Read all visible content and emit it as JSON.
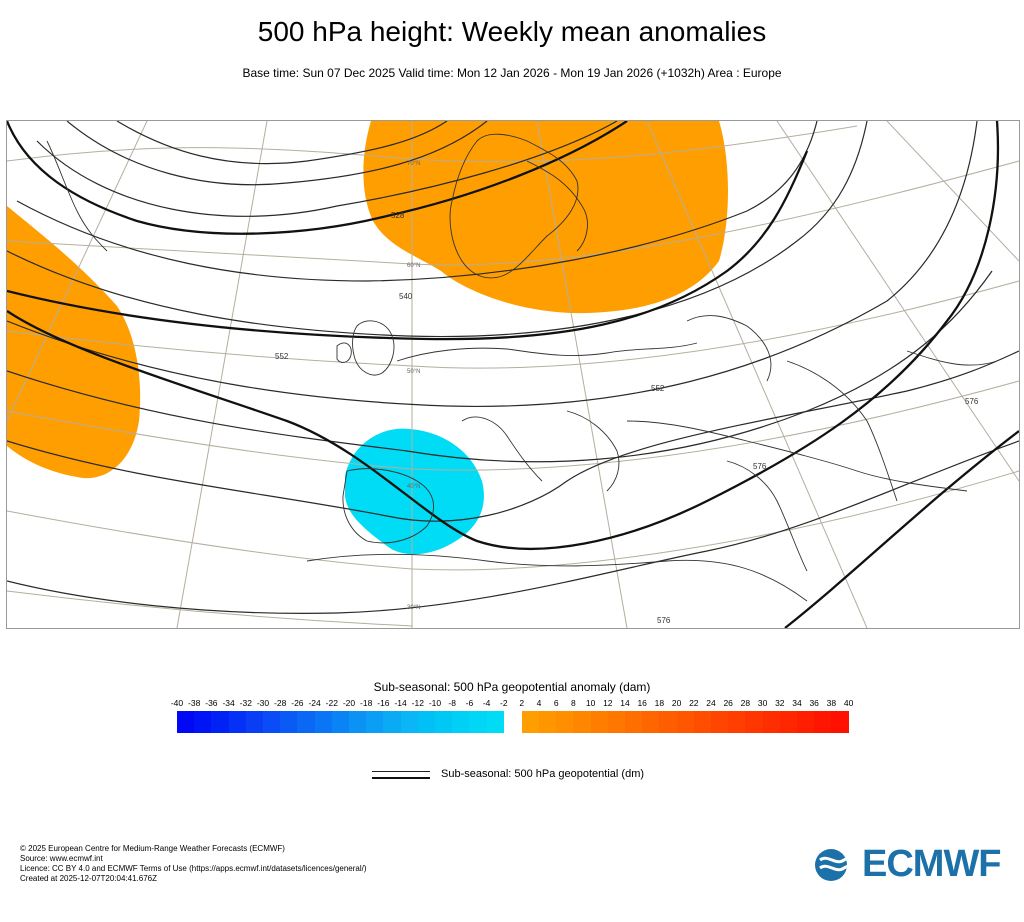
{
  "header": {
    "title": "500 hPa height: Weekly mean anomalies",
    "subtitle": "Base time: Sun 07 Dec 2025 Valid time: Mon 12 Jan 2026 - Mon 19 Jan 2026 (+1032h) Area : Europe"
  },
  "map": {
    "contour_labels": [
      "528",
      "540",
      "552",
      "552",
      "576",
      "576",
      "576"
    ],
    "lat_labels": [
      "70°N",
      "60°N",
      "50°N",
      "40°N",
      "30°N"
    ],
    "colors": {
      "positive_anomaly": "#ff9e00",
      "negative_anomaly": "#00dcf5",
      "contour": "#222222",
      "graticule": "#b5ae9e"
    }
  },
  "legend": {
    "title": "Sub-seasonal: 500 hPa geopotential anomaly (dam)",
    "ticks": [
      "-40",
      "-38",
      "-36",
      "-34",
      "-32",
      "-30",
      "-28",
      "-26",
      "-24",
      "-22",
      "-20",
      "-18",
      "-16",
      "-14",
      "-12",
      "-10",
      "-8",
      "-6",
      "-4",
      "-2",
      "2",
      "4",
      "6",
      "8",
      "10",
      "12",
      "14",
      "16",
      "18",
      "20",
      "22",
      "24",
      "26",
      "28",
      "30",
      "32",
      "34",
      "36",
      "38",
      "40"
    ],
    "negative_colors": [
      "#0008f5",
      "#0015f5",
      "#0022f5",
      "#0530f5",
      "#0a3ef5",
      "#0a4cf5",
      "#0a5af5",
      "#0a68f5",
      "#0a76f5",
      "#0a84f5",
      "#0a92f5",
      "#0a9ef5",
      "#0aaaf5",
      "#0ab6f5",
      "#00c0f5",
      "#00c8f5",
      "#00d0f5",
      "#00d6f5",
      "#00dcf5"
    ],
    "positive_colors": [
      "#ff9e00",
      "#ff9600",
      "#ff8e00",
      "#ff8600",
      "#ff7e00",
      "#ff7600",
      "#ff6e00",
      "#ff6600",
      "#ff5e00",
      "#ff5600",
      "#ff4e00",
      "#ff4600",
      "#ff3e00",
      "#ff3600",
      "#ff2e00",
      "#ff2600",
      "#ff1e00",
      "#ff1600",
      "#ff1000"
    ],
    "line_label": "Sub-seasonal: 500 hPa geopotential (dm)"
  },
  "footer": {
    "lines": [
      "© 2025 European Centre for Medium-Range Weather Forecasts (ECMWF)",
      "Source: www.ecmwf.int",
      "Licence: CC BY 4.0 and ECMWF Terms of Use (https://apps.ecmwf.int/datasets/licences/general/)",
      "Created at 2025-12-07T20:04:41.676Z"
    ]
  },
  "logo": {
    "text": "ECMWF",
    "color": "#1d71a9",
    "icon": "ecmwf-logo-icon"
  }
}
